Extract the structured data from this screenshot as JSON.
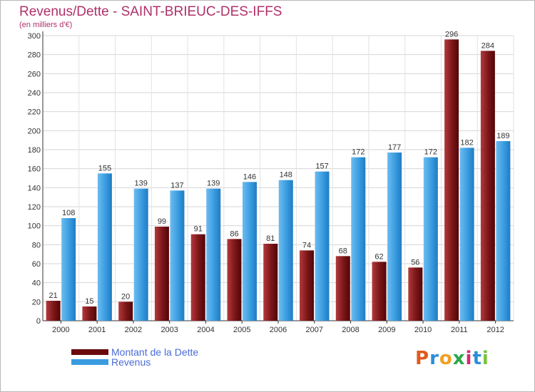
{
  "header": {
    "title": "Revenus/Dette - SAINT-BRIEUC-DES-IFFS",
    "subtitle": "(en milliers d'€)"
  },
  "legend": {
    "items": [
      {
        "label": "Montant de la Dette",
        "color": "#7a0f12"
      },
      {
        "label": "Revenus",
        "color": "#3a9ce0"
      }
    ]
  },
  "logo": {
    "text": "Proxiti",
    "colors": [
      "#e05a1e",
      "#2a8fd8",
      "#f0a020",
      "#2aa84a",
      "#d82a6a",
      "#2a8fd8",
      "#7ac040"
    ]
  },
  "chart_data": {
    "type": "bar",
    "categories": [
      "2000",
      "2001",
      "2002",
      "2003",
      "2004",
      "2005",
      "2006",
      "2007",
      "2008",
      "2009",
      "2010",
      "2011",
      "2012"
    ],
    "series": [
      {
        "name": "Montant de la Dette",
        "color": "#7a0f12",
        "values": [
          21,
          15,
          20,
          99,
          91,
          86,
          81,
          74,
          68,
          62,
          56,
          296,
          284
        ]
      },
      {
        "name": "Revenus",
        "color": "#3a9ce0",
        "values": [
          108,
          155,
          139,
          137,
          139,
          146,
          148,
          157,
          172,
          177,
          172,
          182,
          189
        ]
      }
    ],
    "yticks": [
      0,
      20,
      40,
      60,
      80,
      100,
      120,
      140,
      160,
      180,
      200,
      220,
      240,
      260,
      280,
      300
    ],
    "ylim": [
      0,
      300
    ],
    "grid": true,
    "legend_position": "bottom-left"
  }
}
